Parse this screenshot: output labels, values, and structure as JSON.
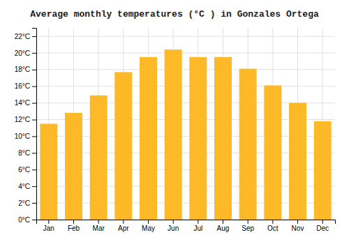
{
  "chart_data": {
    "type": "bar",
    "title": "Average monthly temperatures (°C ) in Gonzales Ortega",
    "categories": [
      "Jan",
      "Feb",
      "Mar",
      "Apr",
      "May",
      "Jun",
      "Jul",
      "Aug",
      "Sep",
      "Oct",
      "Nov",
      "Dec"
    ],
    "values": [
      11.5,
      12.8,
      14.9,
      17.7,
      19.5,
      20.4,
      19.5,
      19.5,
      18.1,
      16.1,
      14.0,
      11.8
    ],
    "color": "#FDB927",
    "ylim": [
      0,
      23
    ],
    "yticks": [
      {
        "value": 0,
        "label": "0°C"
      },
      {
        "value": 2,
        "label": "2°C"
      },
      {
        "value": 4,
        "label": "4°C"
      },
      {
        "value": 6,
        "label": "6°C"
      },
      {
        "value": 8,
        "label": "8°C"
      },
      {
        "value": 10,
        "label": "10°C"
      },
      {
        "value": 12,
        "label": "12°C"
      },
      {
        "value": 14,
        "label": "14°C"
      },
      {
        "value": 16,
        "label": "16°C"
      },
      {
        "value": 18,
        "label": "18°C"
      },
      {
        "value": 20,
        "label": "20°C"
      },
      {
        "value": 22,
        "label": "22°C"
      }
    ],
    "grid": true
  }
}
